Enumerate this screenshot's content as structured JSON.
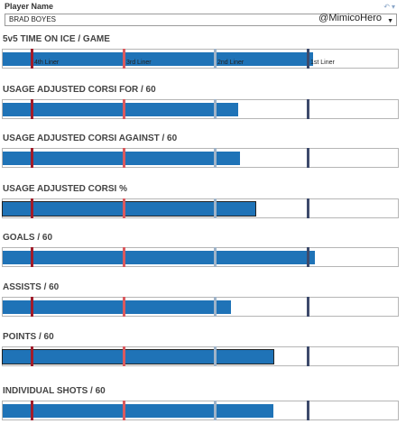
{
  "header": {
    "player_label": "Player Name",
    "player_value": "BRAD BOYES",
    "watermark": "@MimicoHero"
  },
  "tiers": [
    {
      "label": "4th Liner",
      "value": 0.072,
      "color": "#a11c2a"
    },
    {
      "label": "3rd Liner",
      "value": 0.305,
      "color": "#d95a5f"
    },
    {
      "label": "2nd Liner",
      "value": 0.537,
      "color": "#9fb3c8"
    },
    {
      "label": "1st Liner",
      "value": 0.771,
      "color": "#3d4a6b"
    }
  ],
  "chart_data": [
    {
      "type": "bar",
      "title": "5v5 TIME ON ICE / GAME",
      "value": 0.785,
      "show_tier_labels": true,
      "outlined": false
    },
    {
      "type": "bar",
      "title": "USAGE ADJUSTED CORSI FOR / 60",
      "value": 0.595,
      "show_tier_labels": false,
      "outlined": false
    },
    {
      "type": "bar",
      "title": "USAGE ADJUSTED CORSI AGAINST / 60",
      "value": 0.6,
      "show_tier_labels": false,
      "outlined": false
    },
    {
      "type": "bar",
      "title": "USAGE ADJUSTED CORSI %",
      "value": 0.64,
      "show_tier_labels": false,
      "outlined": true
    },
    {
      "type": "bar",
      "title": "GOALS / 60",
      "value": 0.79,
      "show_tier_labels": false,
      "outlined": false
    },
    {
      "type": "bar",
      "title": "ASSISTS / 60",
      "value": 0.578,
      "show_tier_labels": false,
      "outlined": false
    },
    {
      "type": "bar",
      "title": "POINTS / 60",
      "value": 0.685,
      "show_tier_labels": false,
      "outlined": true
    },
    {
      "type": "bar",
      "title": "INDIVIDUAL SHOTS / 60",
      "value": 0.685,
      "show_tier_labels": false,
      "outlined": false
    }
  ]
}
